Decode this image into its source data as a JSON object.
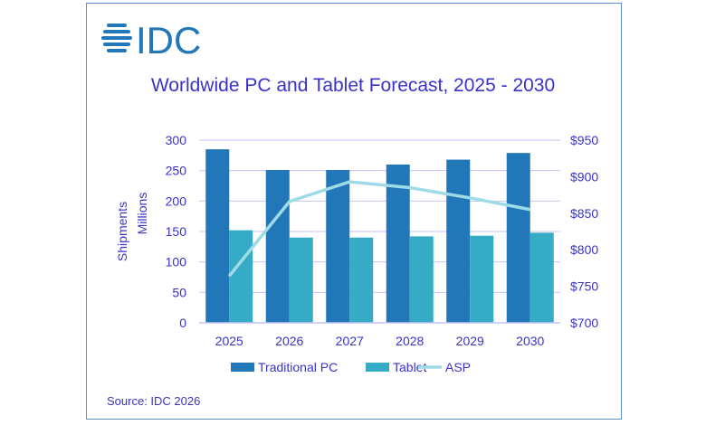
{
  "logo_text": "IDC",
  "source": "Source: IDC 2026",
  "colors": {
    "pc": "#2277b9",
    "tablet": "#35abc6",
    "asp": "#9fdbe6",
    "text": "#3a32c8",
    "grid": "#c4c3f5"
  },
  "chart_data": {
    "type": "bar",
    "title": "Worldwide PC and Tablet Forecast, 2025 - 2030",
    "ylabel": "Shipments Millions",
    "ylabel_lines": [
      "Shipments",
      "Millions"
    ],
    "categories": [
      "2025",
      "2026",
      "2027",
      "2028",
      "2029",
      "2030"
    ],
    "ylim": [
      0,
      300
    ],
    "yticks": [
      "0",
      "50",
      "100",
      "150",
      "200",
      "250",
      "300"
    ],
    "y2lim": [
      700,
      950
    ],
    "y2ticks": [
      "$700",
      "$750",
      "$800",
      "$850",
      "$900",
      "$950"
    ],
    "grid": true,
    "legend": "bottom",
    "series": [
      {
        "name": "Traditional PC",
        "type": "bar",
        "axis": "left",
        "values": [
          285,
          251,
          251,
          260,
          268,
          279
        ]
      },
      {
        "name": "Tablet",
        "type": "bar",
        "axis": "left",
        "values": [
          152,
          140,
          140,
          142,
          143,
          148
        ]
      },
      {
        "name": "ASP",
        "type": "line",
        "axis": "right",
        "values": [
          764,
          866,
          893,
          885,
          871,
          855
        ]
      }
    ]
  }
}
